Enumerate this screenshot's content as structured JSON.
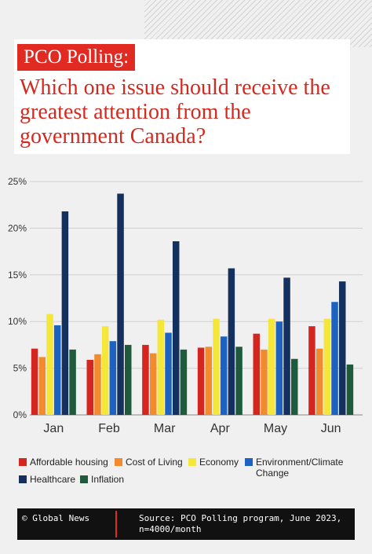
{
  "header": {
    "tag": "PCO Polling:",
    "title": "Which one issue should receive the greatest attention from the government Canada?"
  },
  "chart_data": {
    "type": "bar",
    "categories": [
      "Jan",
      "Feb",
      "Mar",
      "Apr",
      "May",
      "Jun"
    ],
    "series": [
      {
        "name": "Affordable housing",
        "color": "#d4261f",
        "values": [
          7.1,
          5.9,
          7.5,
          7.2,
          8.7,
          9.5
        ]
      },
      {
        "name": "Cost of Living",
        "color": "#f28a2e",
        "values": [
          6.2,
          6.5,
          6.6,
          7.3,
          7.0,
          7.1
        ]
      },
      {
        "name": "Economy",
        "color": "#f5e63a",
        "values": [
          10.8,
          9.5,
          10.2,
          10.3,
          10.3,
          10.3
        ]
      },
      {
        "name": "Environment/Climate Change",
        "color": "#1d62c0",
        "values": [
          9.6,
          7.9,
          8.8,
          8.4,
          10.0,
          12.1
        ]
      },
      {
        "name": "Healthcare",
        "color": "#14305e",
        "values": [
          21.8,
          23.7,
          18.6,
          15.7,
          14.7,
          14.3
        ]
      },
      {
        "name": "Inflation",
        "color": "#1f5a3c",
        "values": [
          7.0,
          7.5,
          7.0,
          7.3,
          6.0,
          5.4
        ]
      }
    ],
    "y_ticks": [
      "0%",
      "5%",
      "10%",
      "15%",
      "20%",
      "25%"
    ],
    "ylim": [
      0,
      25
    ],
    "grid": true,
    "legend_position": "bottom"
  },
  "footer": {
    "credit": "© Global News",
    "source": "Source: PCO Polling program, June 2023, n=4000/month"
  }
}
